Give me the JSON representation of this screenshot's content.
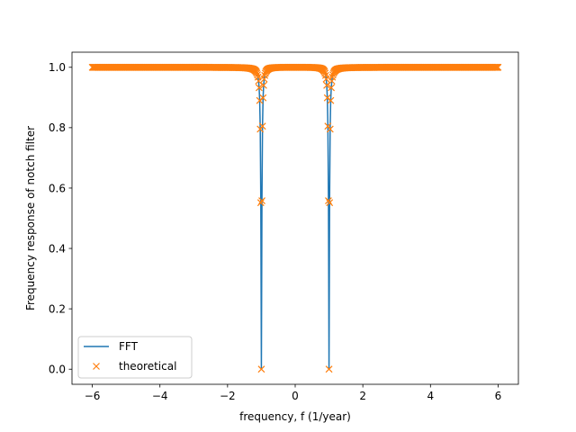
{
  "chart_data": {
    "type": "line",
    "xlabel": "frequency, f (1/year)",
    "ylabel": "Frequency response of notch filter",
    "xlim": [
      -6.6,
      6.6
    ],
    "ylim": [
      -0.05,
      1.05
    ],
    "x_ticks": [
      -6,
      -4,
      -2,
      0,
      2,
      4,
      6
    ],
    "x_tick_labels": [
      "−6",
      "−4",
      "−2",
      "0",
      "2",
      "4",
      "6"
    ],
    "y_ticks": [
      0.0,
      0.2,
      0.4,
      0.6,
      0.8,
      1.0
    ],
    "y_tick_labels": [
      "0.0",
      "0.2",
      "0.4",
      "0.6",
      "0.8",
      "1.0"
    ],
    "grid": false,
    "legend_position": "lower-left",
    "notch_frequency": 1.0,
    "bandwidth": 0.05,
    "x_range": [
      -6,
      6
    ],
    "series": [
      {
        "name": "FFT",
        "type": "line",
        "color": "#1f77b4",
        "samples": 721
      },
      {
        "name": "theoretical",
        "type": "markers",
        "marker": "x",
        "color": "#ff7f0e",
        "samples": 721
      }
    ]
  }
}
